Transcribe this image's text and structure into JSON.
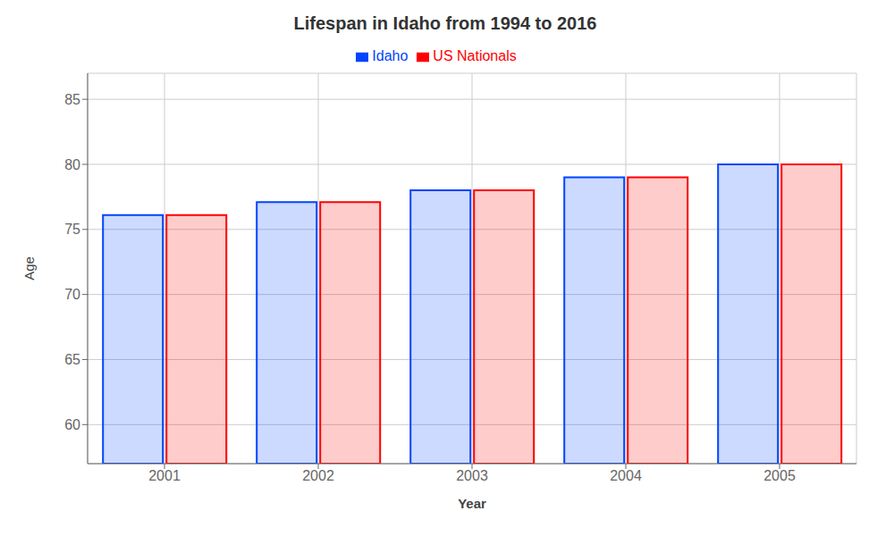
{
  "chart_data": {
    "type": "bar",
    "title": "Lifespan in Idaho from 1994 to 2016",
    "xlabel": "Year",
    "ylabel": "Age",
    "categories": [
      "2001",
      "2002",
      "2003",
      "2004",
      "2005"
    ],
    "series": [
      {
        "name": "Idaho",
        "color": "#0044ff",
        "values": [
          76.1,
          77.1,
          78.0,
          79.0,
          80.0
        ]
      },
      {
        "name": "US Nationals",
        "color": "#ff0000",
        "values": [
          76.1,
          77.1,
          78.0,
          79.0,
          80.0
        ]
      }
    ],
    "ylim": [
      57,
      87
    ],
    "yticks": [
      60,
      65,
      70,
      75,
      80,
      85
    ],
    "grid": true,
    "legend": "top"
  }
}
